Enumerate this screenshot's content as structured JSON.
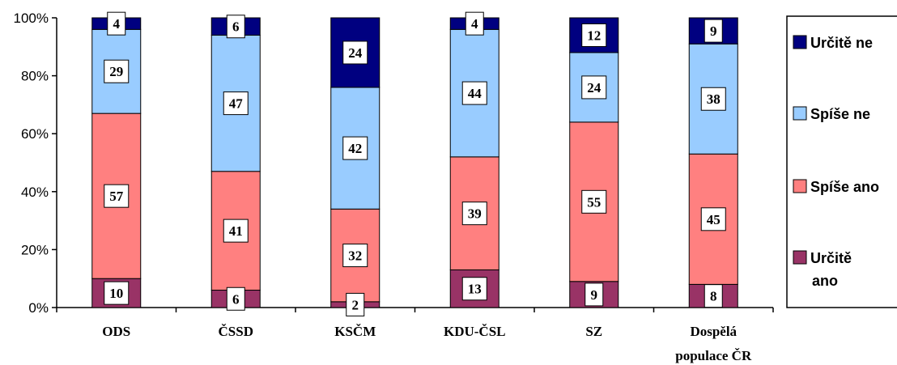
{
  "chart_data": {
    "type": "bar",
    "stacked": "percent",
    "title": "",
    "xlabel": "",
    "ylabel": "",
    "ylim": [
      0,
      100
    ],
    "y_ticks": [
      "0%",
      "20%",
      "40%",
      "60%",
      "80%",
      "100%"
    ],
    "categories": [
      [
        "ODS"
      ],
      [
        "ČSSD"
      ],
      [
        "KSČM"
      ],
      [
        "KDU-ČSL"
      ],
      [
        "SZ"
      ],
      [
        "Dospělá",
        "populace ČR"
      ]
    ],
    "series": [
      {
        "name": "Určitě ano",
        "color": "#993366",
        "values": [
          10,
          6,
          2,
          13,
          9,
          8
        ]
      },
      {
        "name": "Spíše ano",
        "color": "#FF8080",
        "values": [
          57,
          41,
          32,
          39,
          55,
          45
        ]
      },
      {
        "name": "Spíše ne",
        "color": "#99CCFF",
        "values": [
          29,
          47,
          42,
          44,
          24,
          38
        ]
      },
      {
        "name": "Určitě ne",
        "color": "#000080",
        "values": [
          4,
          6,
          24,
          4,
          12,
          9
        ]
      }
    ],
    "legend": {
      "placement": "right",
      "order": [
        3,
        2,
        1,
        0
      ],
      "entries": [
        [
          "Určitě ne"
        ],
        [
          "Spíše ne"
        ],
        [
          "Spíše ano"
        ],
        [
          "Určitě",
          "ano"
        ]
      ]
    },
    "grid": false
  }
}
